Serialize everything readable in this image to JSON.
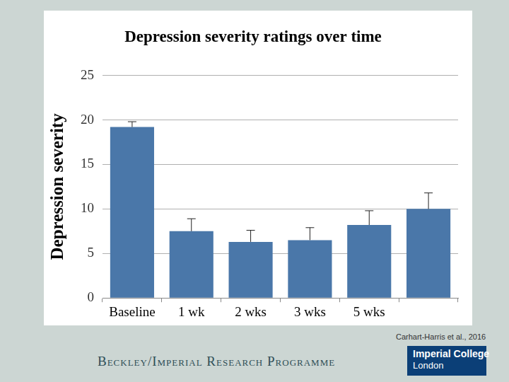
{
  "chart_data": {
    "type": "bar",
    "title": "Depression severity ratings over time",
    "y_label": "Depression severity",
    "categories": [
      "Baseline",
      "1 wk",
      "2 wks",
      "3 wks",
      "5 wks",
      null
    ],
    "values": [
      19.2,
      7.5,
      6.3,
      6.5,
      8.2,
      10.0
    ],
    "errors": [
      0.6,
      1.4,
      1.3,
      1.4,
      1.6,
      1.8
    ],
    "color": "#4a77a9",
    "ylim": [
      0,
      25
    ],
    "yticks": [
      0,
      5,
      10,
      15,
      20,
      25
    ],
    "grid": true
  },
  "page": {
    "source": "Carhart-Harris et al., 2016",
    "footer": "Beckley/Imperial Research Programme",
    "logo": [
      "Imperial College",
      "London"
    ]
  }
}
